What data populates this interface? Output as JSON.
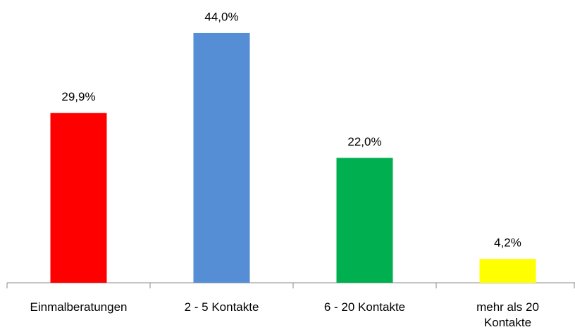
{
  "chart_data": {
    "type": "bar",
    "categories": [
      "Einmalberatungen",
      "2 - 5 Kontakte",
      "6 - 20 Kontakte",
      "mehr als 20 Kontakte"
    ],
    "values": [
      29.9,
      44.0,
      22.0,
      4.2
    ],
    "value_labels": [
      "29,9%",
      "44,0%",
      "22,0%",
      "4,2%"
    ],
    "colors": [
      "#ff0000",
      "#558ed5",
      "#00b050",
      "#ffff00"
    ]
  }
}
